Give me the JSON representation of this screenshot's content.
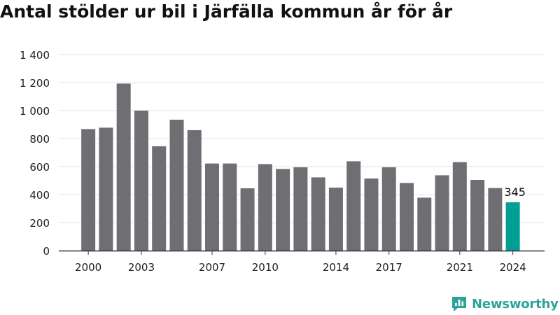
{
  "chart_data": {
    "type": "bar",
    "title": "Antal stölder ur bil i Järfälla kommun år för år",
    "x": [
      2000,
      2001,
      2002,
      2003,
      2004,
      2005,
      2006,
      2007,
      2008,
      2009,
      2010,
      2011,
      2012,
      2013,
      2014,
      2015,
      2016,
      2017,
      2018,
      2019,
      2020,
      2021,
      2022,
      2023,
      2024
    ],
    "values": [
      868,
      878,
      1193,
      1000,
      745,
      935,
      860,
      622,
      622,
      445,
      618,
      583,
      595,
      523,
      450,
      638,
      515,
      595,
      483,
      378,
      538,
      632,
      505,
      447,
      345
    ],
    "x_tick_labels": [
      "2000",
      "2003",
      "2007",
      "2010",
      "2014",
      "2017",
      "2021",
      "2024"
    ],
    "y_ticks": [
      0,
      200,
      400,
      600,
      800,
      1000,
      1200,
      1400
    ],
    "y_tick_labels": [
      "0",
      "200",
      "400",
      "600",
      "800",
      "1 000",
      "1 200",
      "1 400"
    ],
    "ylim": [
      0,
      1400
    ],
    "highlight": {
      "year": 2024,
      "label": "345"
    },
    "grid": true,
    "colors": {
      "bar": "#6f6e73",
      "highlight": "#009e93",
      "grid": "#e3e3e3",
      "axis": "#333333",
      "text": "#222222"
    }
  },
  "brand": {
    "name": "Newsworthy",
    "icon": "newsworthy-logo-icon",
    "color": "#2aa39a"
  }
}
